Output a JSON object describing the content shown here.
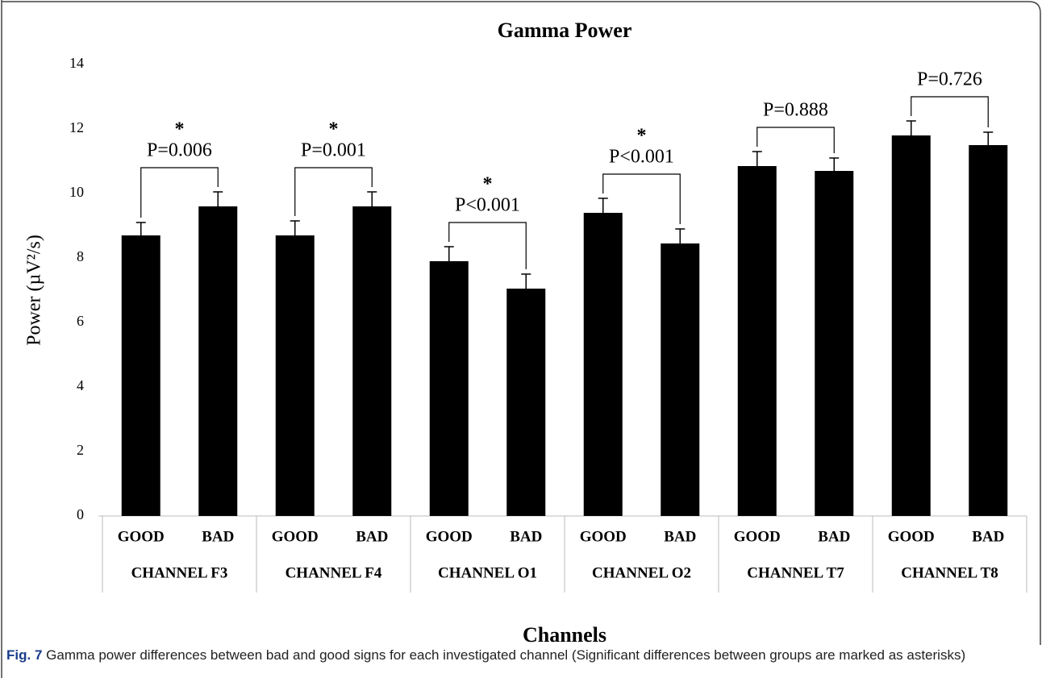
{
  "chart_data": {
    "type": "bar",
    "title": "Gamma Power",
    "x_label": "Channels",
    "y_label": "Power (µV²/s)",
    "categories": [
      "GOOD",
      "BAD",
      "GOOD",
      "BAD",
      "GOOD",
      "BAD",
      "GOOD",
      "BAD",
      "GOOD",
      "BAD",
      "GOOD",
      "BAD"
    ],
    "groups": [
      "CHANNEL F3",
      "CHANNEL F4",
      "CHANNEL O1",
      "CHANNEL O2",
      "CHANNEL T7",
      "CHANNEL T8"
    ],
    "series": [
      {
        "color": "#000000",
        "values": [
          8.7,
          9.6,
          8.7,
          9.6,
          7.9,
          7.05,
          9.4,
          8.45,
          10.85,
          10.7,
          11.8,
          11.5
        ],
        "errors": [
          0.4,
          0.45,
          0.45,
          0.45,
          0.45,
          0.45,
          0.45,
          0.45,
          0.45,
          0.4,
          0.45,
          0.4
        ]
      }
    ],
    "annotations": [
      {
        "text": "P=0.006",
        "mark": "*"
      },
      {
        "text": "P=0.001",
        "mark": "*"
      },
      {
        "text": "P<0.001",
        "mark": "*"
      },
      {
        "text": "P<0.001",
        "mark": "*"
      },
      {
        "text": "P=0.888"
      },
      {
        "text": "P=0.726"
      }
    ],
    "ylim": [
      0,
      14
    ],
    "yticks": [
      0,
      2,
      4,
      6,
      8,
      10,
      12,
      14
    ],
    "grid": false
  },
  "caption": {
    "label": "Fig. 7",
    "text": "Gamma power differences between bad and good signs for each investigated channel (Significant differences between groups are marked as asterisks)"
  }
}
